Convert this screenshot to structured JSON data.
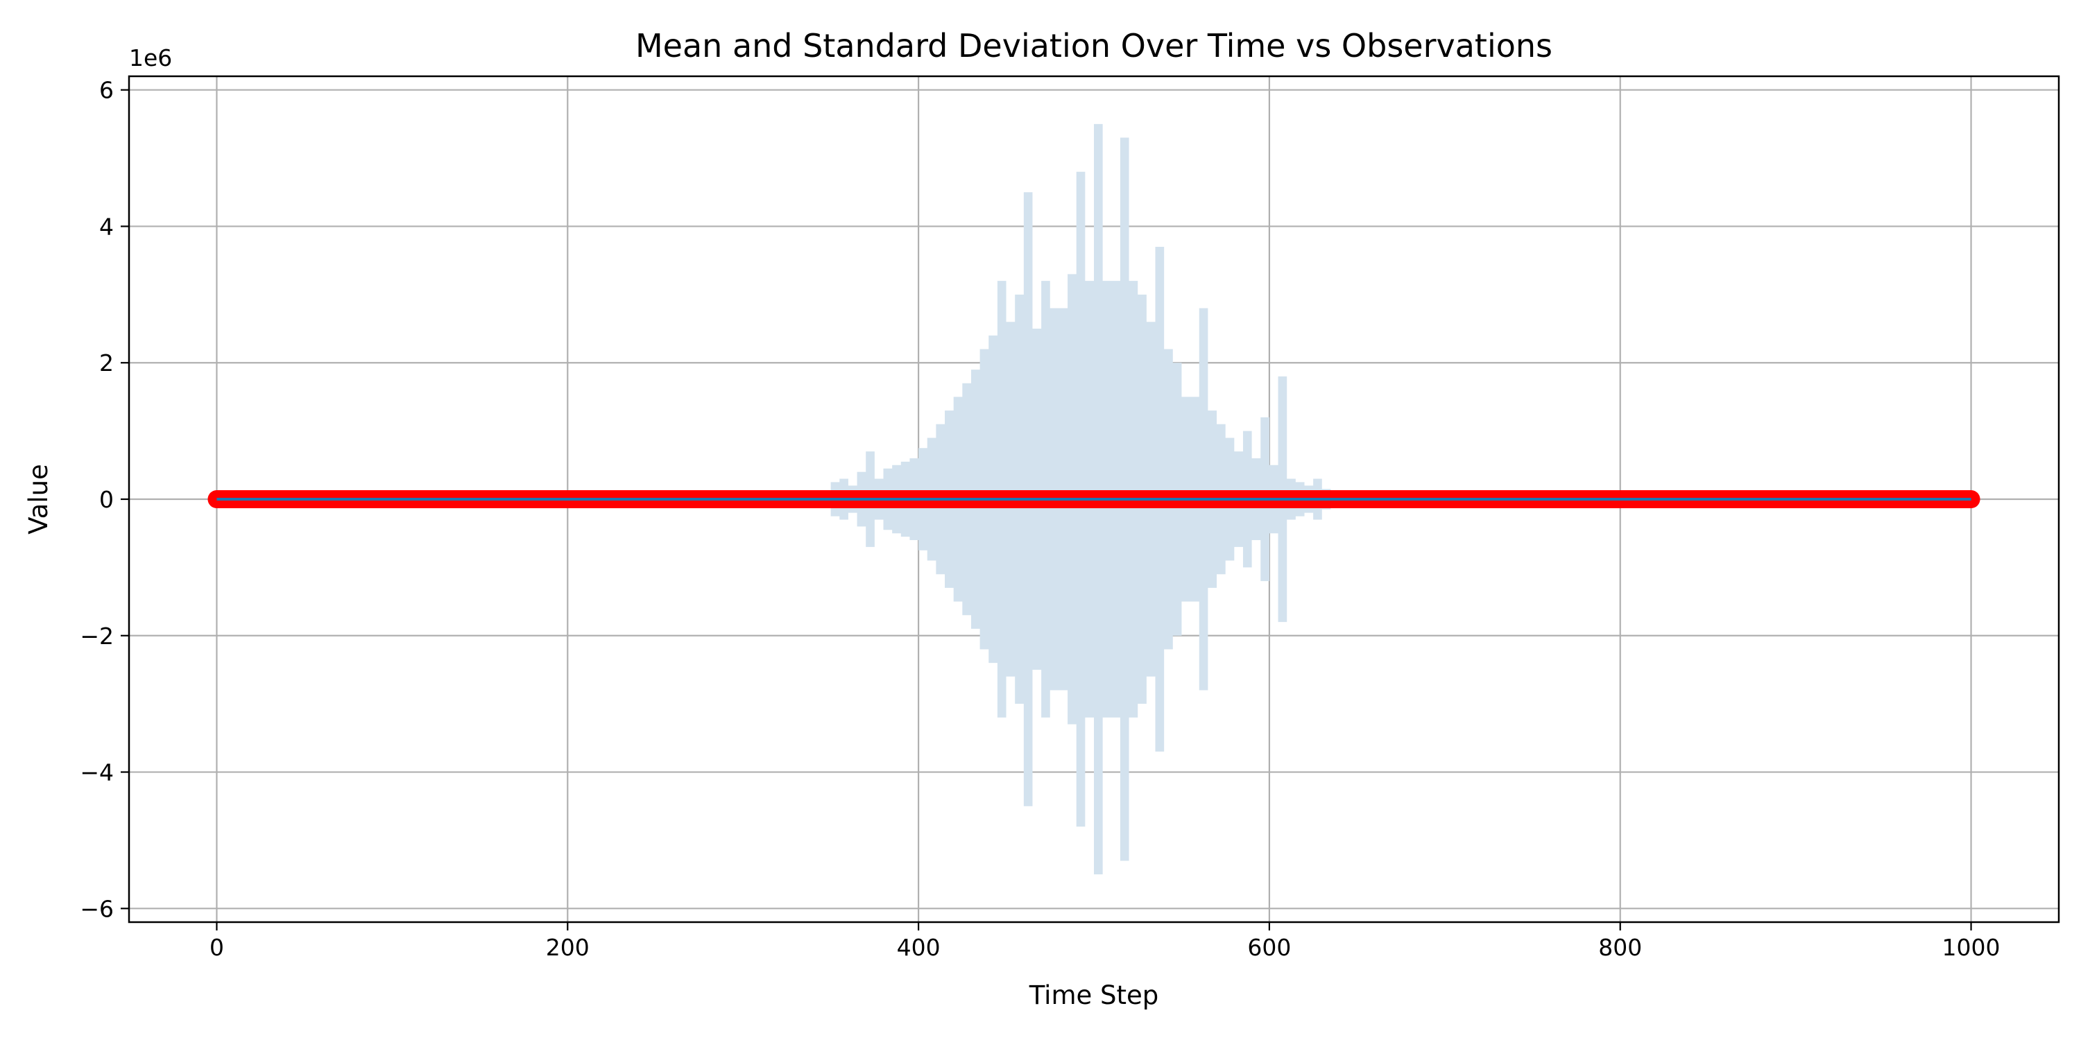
{
  "chart_data": {
    "type": "line",
    "title": "Mean and Standard Deviation Over Time vs Observations",
    "xlabel": "Time Step",
    "ylabel": "Value",
    "y_offset_label": "1e6",
    "xlim": [
      -50,
      1050
    ],
    "ylim": [
      -6200000,
      6200000
    ],
    "x_ticks": [
      0,
      200,
      400,
      600,
      800,
      1000
    ],
    "x_tick_labels": [
      "0",
      "200",
      "400",
      "600",
      "800",
      "1000"
    ],
    "y_ticks": [
      -6000000,
      -4000000,
      -2000000,
      0,
      2000000,
      4000000,
      6000000
    ],
    "y_tick_labels": [
      "−6",
      "−4",
      "−2",
      "0",
      "2",
      "4",
      "6"
    ],
    "grid": true,
    "series": [
      {
        "kind": "band",
        "color": "#d3e2ee",
        "x": [
          350,
          355,
          360,
          365,
          370,
          375,
          380,
          385,
          390,
          395,
          400,
          405,
          410,
          415,
          420,
          425,
          430,
          435,
          440,
          445,
          450,
          455,
          460,
          465,
          470,
          475,
          480,
          485,
          490,
          495,
          500,
          505,
          510,
          515,
          520,
          525,
          530,
          535,
          540,
          545,
          550,
          555,
          560,
          565,
          570,
          575,
          580,
          585,
          590,
          595,
          600,
          605,
          610,
          615,
          620,
          625,
          630,
          635
        ],
        "half_width": [
          250000,
          300000,
          200000,
          400000,
          700000,
          300000,
          450000,
          500000,
          550000,
          600000,
          750000,
          900000,
          1100000,
          1300000,
          1500000,
          1700000,
          1900000,
          2200000,
          2400000,
          3200000,
          2600000,
          3000000,
          4500000,
          2500000,
          3200000,
          2800000,
          2800000,
          3300000,
          4800000,
          3200000,
          5500000,
          3200000,
          3200000,
          5300000,
          3200000,
          3000000,
          2600000,
          3700000,
          2200000,
          2000000,
          1500000,
          1500000,
          2800000,
          1300000,
          1100000,
          900000,
          700000,
          1000000,
          600000,
          1200000,
          500000,
          1800000,
          300000,
          250000,
          200000,
          300000,
          150000,
          100000
        ]
      },
      {
        "kind": "observations",
        "color": "#ff0000",
        "x_start": 0,
        "x_end": 1000,
        "value": 0
      },
      {
        "kind": "mean",
        "color": "#1f77b4",
        "x_start": 0,
        "x_end": 1000,
        "value": 0
      }
    ]
  }
}
